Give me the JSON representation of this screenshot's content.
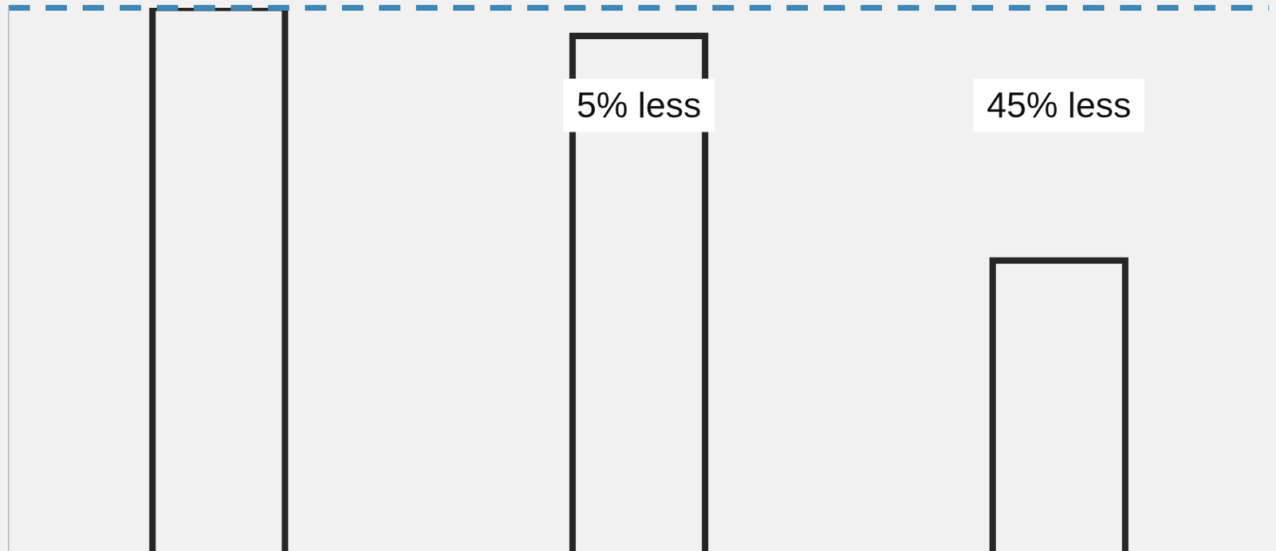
{
  "chart_data": {
    "type": "bar",
    "categories": [
      null,
      null,
      null
    ],
    "values": [
      100,
      95,
      55
    ],
    "color": "#262626",
    "ylim": [
      0,
      100
    ],
    "reference_line": 100,
    "tick_labels": false,
    "grid": false,
    "annotations": [
      {
        "text": "5% less",
        "index": 1
      },
      {
        "text": "45% less",
        "index": 2
      }
    ]
  }
}
